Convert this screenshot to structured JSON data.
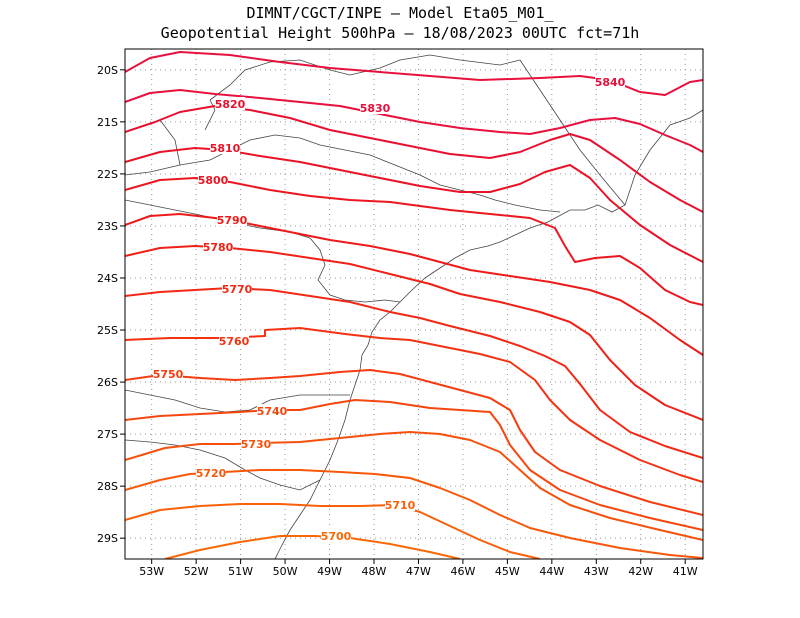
{
  "header": {
    "line1": "DIMNT/CGCT/INPE –  Model Eta05_M01_",
    "line2": "Geopotential Height 500hPa –  18/08/2023 00UTC fct=71h"
  },
  "map": {
    "lon_range": [
      -53.6,
      -40.6
    ],
    "lat_range": [
      -29.4,
      -19.6
    ],
    "lon_ticks": [
      "53W",
      "52W",
      "51W",
      "50W",
      "49W",
      "48W",
      "47W",
      "46W",
      "45W",
      "44W",
      "43W",
      "42W",
      "41W"
    ],
    "lat_ticks": [
      "20S",
      "21S",
      "22S",
      "23S",
      "24S",
      "25S",
      "26S",
      "27S",
      "28S",
      "29S"
    ],
    "grid": "dotted",
    "contour_interval": 10,
    "units": "gpm"
  },
  "contours": [
    {
      "level": 5840,
      "label": "5840",
      "color": "#e8103c"
    },
    {
      "level": 5830,
      "label": "5830",
      "color": "#e8103c"
    },
    {
      "level": 5820,
      "label": "5820",
      "color": "#e8102e"
    },
    {
      "level": 5810,
      "label": "5810",
      "color": "#ea1226"
    },
    {
      "level": 5800,
      "label": "5800",
      "color": "#ec1620"
    },
    {
      "level": 5790,
      "label": "5790",
      "color": "#ee1a1a"
    },
    {
      "level": 5780,
      "label": "5780",
      "color": "#f02016"
    },
    {
      "level": 5770,
      "label": "5770",
      "color": "#f22814"
    },
    {
      "level": 5760,
      "label": "5760",
      "color": "#f43212"
    },
    {
      "level": 5750,
      "label": "5750",
      "color": "#f53c10"
    },
    {
      "level": 5740,
      "label": "5740",
      "color": "#f6460e"
    },
    {
      "level": 5730,
      "label": "5730",
      "color": "#f7500c"
    },
    {
      "level": 5720,
      "label": "5720",
      "color": "#f8580a"
    },
    {
      "level": 5710,
      "label": "5710",
      "color": "#f96008"
    },
    {
      "level": 5700,
      "label": "5700",
      "color": "#fa6806"
    }
  ]
}
